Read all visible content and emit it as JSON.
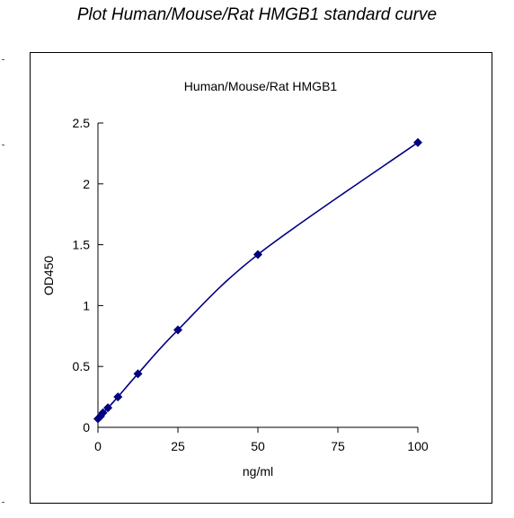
{
  "page_title": "Plot Human/Mouse/Rat HMGB1 standard curve",
  "chart_data": {
    "type": "scatter",
    "title": "Human/Mouse/Rat HMGB1",
    "xlabel": "ng/ml",
    "ylabel": "OD450",
    "xlim": [
      0,
      100
    ],
    "ylim": [
      0,
      2.5
    ],
    "x_ticks": [
      0,
      25,
      50,
      75,
      100
    ],
    "y_ticks": [
      0,
      0.5,
      1,
      1.5,
      2,
      2.5
    ],
    "grid": false,
    "legend": "none",
    "series": [
      {
        "x": [
          0,
          0.78,
          1.56,
          3.12,
          6.25,
          12.5,
          25,
          50,
          100
        ],
        "y": [
          0.07,
          0.09,
          0.12,
          0.16,
          0.25,
          0.44,
          0.8,
          1.42,
          2.34
        ],
        "marker": "diamond",
        "trendline": "smooth",
        "color": "#000080"
      }
    ]
  }
}
